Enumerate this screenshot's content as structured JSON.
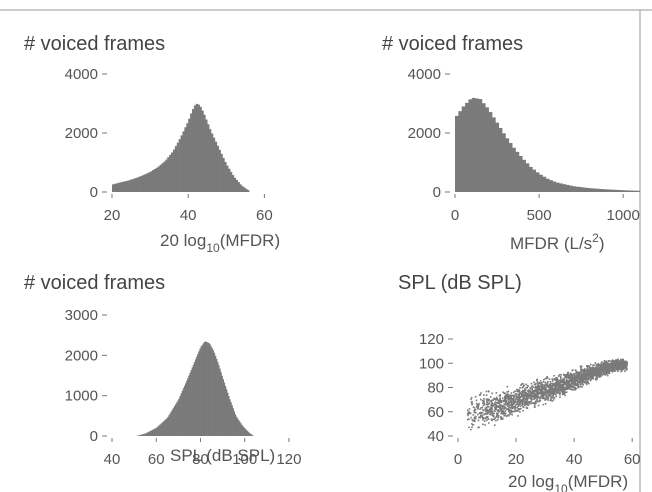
{
  "chart_data": [
    {
      "type": "bar",
      "ylabel": "# voiced frames",
      "xlabel": "20 log",
      "xlabel_sub": "10",
      "xlabel_suffix": "(MFDR)",
      "xlim": [
        20,
        62
      ],
      "ylim": [
        0,
        4000
      ],
      "xticks": [
        20,
        40,
        60
      ],
      "yticks": [
        0,
        2000,
        4000
      ],
      "bin_width": 0.5,
      "bins_x": [
        20,
        22,
        24,
        26,
        28,
        30,
        32,
        34,
        36,
        38,
        40,
        41,
        42,
        43,
        44,
        46,
        48,
        50,
        52,
        54,
        56
      ],
      "bins_y": [
        250,
        320,
        380,
        460,
        560,
        680,
        840,
        1060,
        1380,
        1850,
        2400,
        2750,
        3000,
        2950,
        2700,
        2050,
        1500,
        950,
        520,
        220,
        40
      ]
    },
    {
      "type": "bar",
      "ylabel": "# voiced frames",
      "xlabel": "MFDR (L/s",
      "xlabel_sup": "2",
      "xlabel_suffix": ")",
      "xlim": [
        0,
        1100
      ],
      "ylim": [
        0,
        4000
      ],
      "xticks": [
        0,
        500,
        1000
      ],
      "yticks": [
        0,
        2000,
        4000
      ],
      "bin_width": 20,
      "bins_x": [
        0,
        50,
        100,
        150,
        200,
        250,
        300,
        350,
        400,
        450,
        500,
        550,
        600,
        700,
        800,
        900,
        1000,
        1100
      ],
      "bins_y": [
        2500,
        2900,
        3200,
        3150,
        2800,
        2350,
        1900,
        1500,
        1150,
        850,
        620,
        450,
        330,
        200,
        130,
        90,
        60,
        40
      ]
    },
    {
      "type": "bar",
      "ylabel": "# voiced frames",
      "xlabel": "SPL (dB SPL)",
      "xlim": [
        40,
        125
      ],
      "ylim": [
        0,
        3000
      ],
      "xticks": [
        40,
        60,
        80,
        100,
        120
      ],
      "yticks": [
        0,
        1000,
        2000,
        3000
      ],
      "bin_width": 0.5,
      "bins_x": [
        51,
        55,
        60,
        65,
        70,
        74,
        77,
        80,
        82,
        84,
        86,
        88,
        90,
        93,
        96,
        99,
        102,
        104
      ],
      "bins_y": [
        0,
        60,
        200,
        450,
        900,
        1400,
        1800,
        2200,
        2350,
        2300,
        2100,
        1800,
        1450,
        950,
        500,
        250,
        80,
        0
      ]
    },
    {
      "type": "scatter",
      "ylabel": "SPL (dB SPL)",
      "xlabel": "20 log",
      "xlabel_sub": "10",
      "xlabel_suffix": "(MFDR)",
      "xlim": [
        0,
        62
      ],
      "ylim": [
        40,
        120
      ],
      "xticks": [
        0,
        20,
        40,
        60
      ],
      "yticks": [
        40,
        60,
        80,
        100,
        120
      ],
      "trend": {
        "x": [
          5,
          15,
          25,
          35,
          45,
          55
        ],
        "y": [
          60,
          66,
          74,
          82,
          92,
          100
        ]
      },
      "spread": 8
    }
  ]
}
